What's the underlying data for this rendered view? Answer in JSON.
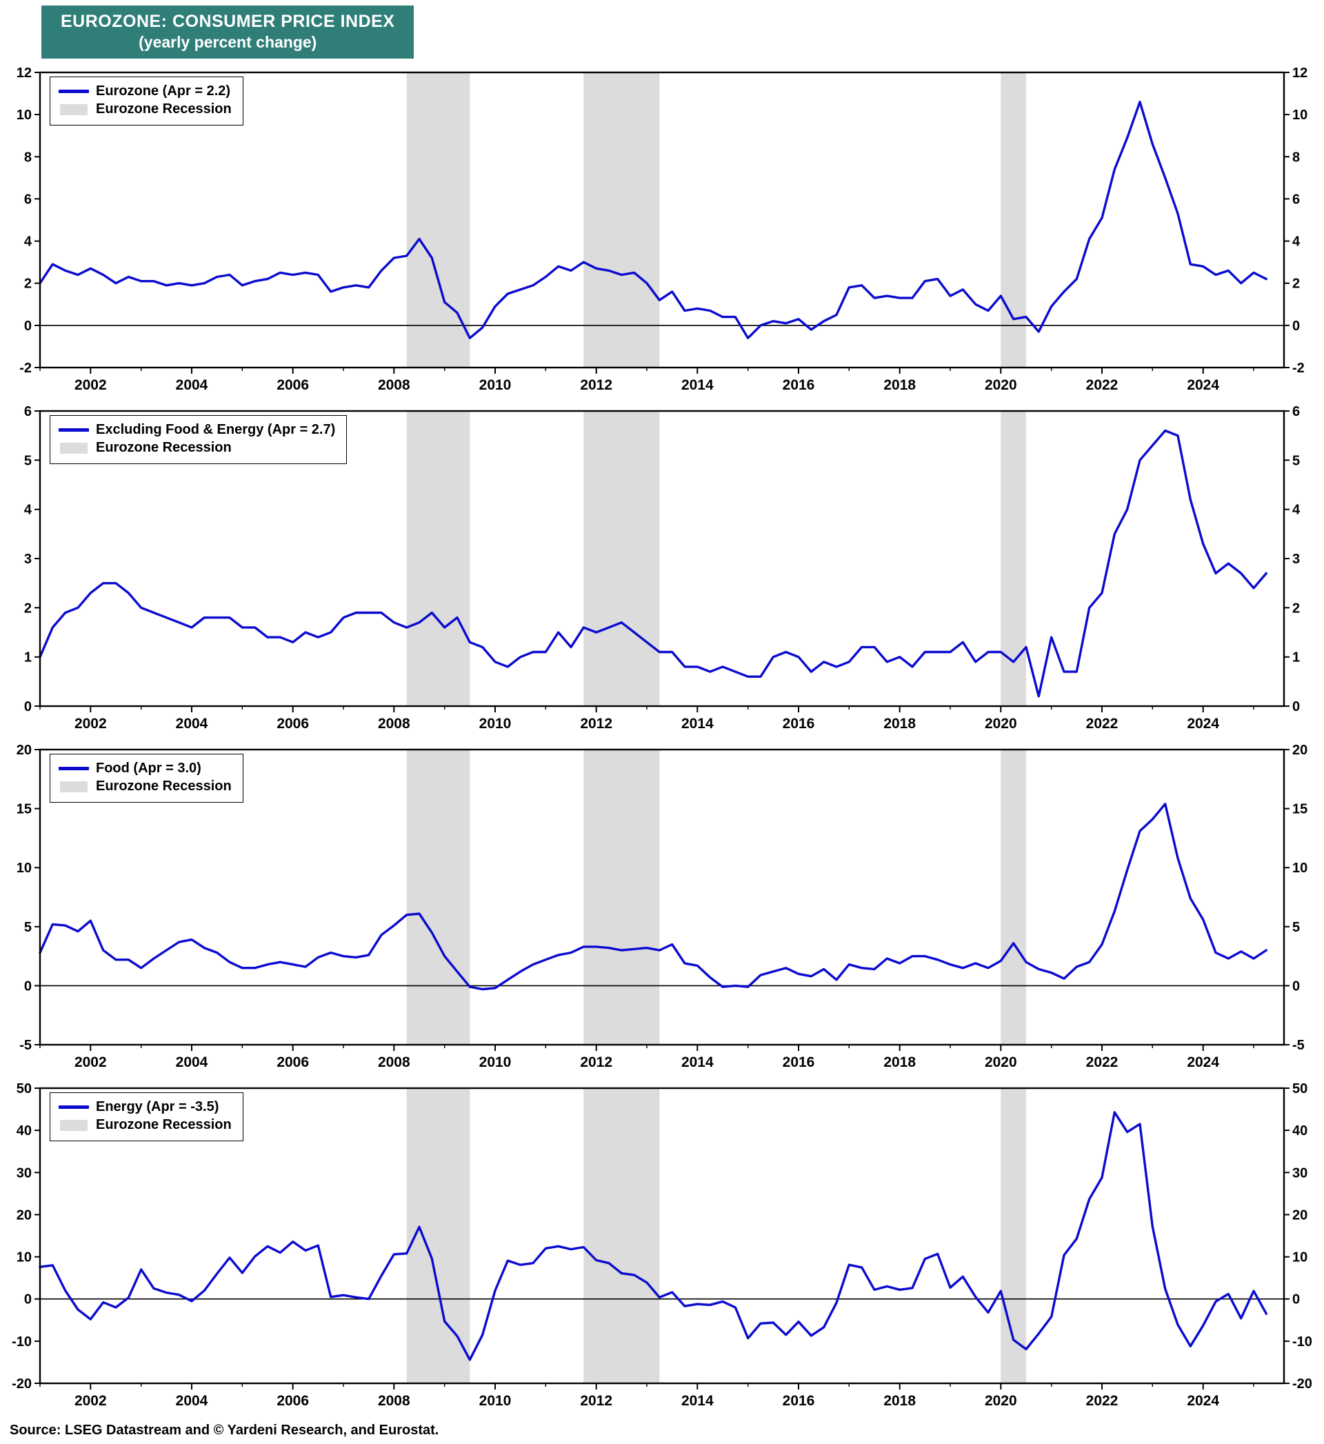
{
  "title": {
    "line1": "EUROZONE: CONSUMER PRICE INDEX",
    "line2": "(yearly percent change)"
  },
  "source": "Source: LSEG Datastream and © Yardeni Research, and Eurostat.",
  "colors": {
    "title_bg": "#2F7E78",
    "title_text": "#FFFFFF",
    "line": "#0B0BD0",
    "recession_band": "#DCDCDC",
    "axis": "#000000"
  },
  "chart_data": {
    "type": "line",
    "x_start_year": 2001,
    "x_interval_years": 0.25,
    "points_per_series": 98,
    "xlim": [
      2001,
      2025.6
    ],
    "x_tick_labels": [
      "2002",
      "2004",
      "2006",
      "2008",
      "2010",
      "2012",
      "2014",
      "2016",
      "2018",
      "2020",
      "2022",
      "2024"
    ],
    "recessions": [
      [
        2008.25,
        2009.5
      ],
      [
        2011.75,
        2013.25
      ],
      [
        2020.0,
        2020.5
      ]
    ],
    "legend_position": "top-left",
    "grid": false,
    "panels": [
      {
        "legend_series": "Eurozone (Apr = 2.2)",
        "legend_recession": "Eurozone Recession",
        "ylim": [
          -2,
          12
        ],
        "ytick": 2,
        "values": [
          2.0,
          2.9,
          2.6,
          2.4,
          2.7,
          2.4,
          2.0,
          2.3,
          2.1,
          2.1,
          1.9,
          2.0,
          1.9,
          2.0,
          2.3,
          2.4,
          1.9,
          2.1,
          2.2,
          2.5,
          2.4,
          2.5,
          2.4,
          1.6,
          1.8,
          1.9,
          1.8,
          2.6,
          3.2,
          3.3,
          4.1,
          3.2,
          1.1,
          0.6,
          -0.6,
          -0.1,
          0.9,
          1.5,
          1.7,
          1.9,
          2.3,
          2.8,
          2.6,
          3.0,
          2.7,
          2.6,
          2.4,
          2.5,
          2.0,
          1.2,
          1.6,
          0.7,
          0.8,
          0.7,
          0.4,
          0.4,
          -0.6,
          0.0,
          0.2,
          0.1,
          0.3,
          -0.2,
          0.2,
          0.5,
          1.8,
          1.9,
          1.3,
          1.4,
          1.3,
          1.3,
          2.1,
          2.2,
          1.4,
          1.7,
          1.0,
          0.7,
          1.4,
          0.3,
          0.4,
          -0.3,
          0.9,
          1.6,
          2.2,
          4.1,
          5.1,
          7.4,
          8.9,
          10.6,
          8.6,
          7.0,
          5.3,
          2.9,
          2.8,
          2.4,
          2.6,
          2.0,
          2.5,
          2.2
        ]
      },
      {
        "legend_series": "Excluding Food & Energy (Apr = 2.7)",
        "legend_recession": "Eurozone Recession",
        "ylim": [
          0,
          6
        ],
        "ytick": 1,
        "values": [
          1.0,
          1.6,
          1.9,
          2.0,
          2.3,
          2.5,
          2.5,
          2.3,
          2.0,
          1.9,
          1.8,
          1.7,
          1.6,
          1.8,
          1.8,
          1.8,
          1.6,
          1.6,
          1.4,
          1.4,
          1.3,
          1.5,
          1.4,
          1.5,
          1.8,
          1.9,
          1.9,
          1.9,
          1.7,
          1.6,
          1.7,
          1.9,
          1.6,
          1.8,
          1.3,
          1.2,
          0.9,
          0.8,
          1.0,
          1.1,
          1.1,
          1.5,
          1.2,
          1.6,
          1.5,
          1.6,
          1.7,
          1.5,
          1.3,
          1.1,
          1.1,
          0.8,
          0.8,
          0.7,
          0.8,
          0.7,
          0.6,
          0.6,
          1.0,
          1.1,
          1.0,
          0.7,
          0.9,
          0.8,
          0.9,
          1.2,
          1.2,
          0.9,
          1.0,
          0.8,
          1.1,
          1.1,
          1.1,
          1.3,
          0.9,
          1.1,
          1.1,
          0.9,
          1.2,
          0.2,
          1.4,
          0.7,
          0.7,
          2.0,
          2.3,
          3.5,
          4.0,
          5.0,
          5.3,
          5.6,
          5.5,
          4.2,
          3.3,
          2.7,
          2.9,
          2.7,
          2.4,
          2.7
        ]
      },
      {
        "legend_series": "Food (Apr = 3.0)",
        "legend_recession": "Eurozone Recession",
        "ylim": [
          -5,
          20
        ],
        "ytick": 5,
        "values": [
          2.8,
          5.2,
          5.1,
          4.6,
          5.5,
          3.0,
          2.2,
          2.2,
          1.5,
          2.3,
          3.0,
          3.7,
          3.9,
          3.2,
          2.8,
          2.0,
          1.5,
          1.5,
          1.8,
          2.0,
          1.8,
          1.6,
          2.4,
          2.8,
          2.5,
          2.4,
          2.6,
          4.3,
          5.1,
          6.0,
          6.1,
          4.5,
          2.5,
          1.2,
          -0.1,
          -0.3,
          -0.2,
          0.5,
          1.2,
          1.8,
          2.2,
          2.6,
          2.8,
          3.3,
          3.3,
          3.2,
          3.0,
          3.1,
          3.2,
          3.0,
          3.5,
          1.9,
          1.7,
          0.7,
          -0.1,
          0.0,
          -0.1,
          0.9,
          1.2,
          1.5,
          1.0,
          0.8,
          1.4,
          0.5,
          1.8,
          1.5,
          1.4,
          2.3,
          1.9,
          2.5,
          2.5,
          2.2,
          1.8,
          1.5,
          1.9,
          1.5,
          2.1,
          3.6,
          2.0,
          1.4,
          1.1,
          0.6,
          1.6,
          2.0,
          3.5,
          6.3,
          9.8,
          13.1,
          14.1,
          15.4,
          10.8,
          7.4,
          5.6,
          2.8,
          2.3,
          2.9,
          2.3,
          3.0
        ]
      },
      {
        "legend_series": "Energy (Apr = -3.5)",
        "legend_recession": "Eurozone Recession",
        "ylim": [
          -20,
          50
        ],
        "ytick": 10,
        "values": [
          7.6,
          8.0,
          2.0,
          -2.5,
          -4.8,
          -0.8,
          -2.0,
          0.3,
          7.0,
          2.5,
          1.5,
          1.0,
          -0.5,
          2.0,
          6.0,
          9.8,
          6.2,
          10.1,
          12.5,
          11.0,
          13.6,
          11.5,
          12.7,
          0.5,
          0.9,
          0.4,
          0.0,
          5.5,
          10.6,
          10.8,
          17.1,
          9.6,
          -5.3,
          -8.8,
          -14.4,
          -8.5,
          2.0,
          9.1,
          8.1,
          8.5,
          12.0,
          12.5,
          11.8,
          12.3,
          9.2,
          8.5,
          6.1,
          5.7,
          3.9,
          0.4,
          1.6,
          -1.7,
          -1.2,
          -1.4,
          -0.6,
          -2.0,
          -9.3,
          -5.8,
          -5.6,
          -8.5,
          -5.4,
          -8.7,
          -6.7,
          -0.9,
          8.1,
          7.5,
          2.2,
          3.0,
          2.2,
          2.6,
          9.5,
          10.7,
          2.7,
          5.3,
          0.5,
          -3.2,
          1.9,
          -9.7,
          -11.9,
          -8.2,
          -4.2,
          10.4,
          14.3,
          23.7,
          28.8,
          44.3,
          39.6,
          41.5,
          17.2,
          2.4,
          -6.1,
          -11.2,
          -6.3,
          -0.6,
          1.2,
          -4.6,
          1.9,
          -3.5
        ]
      }
    ]
  }
}
